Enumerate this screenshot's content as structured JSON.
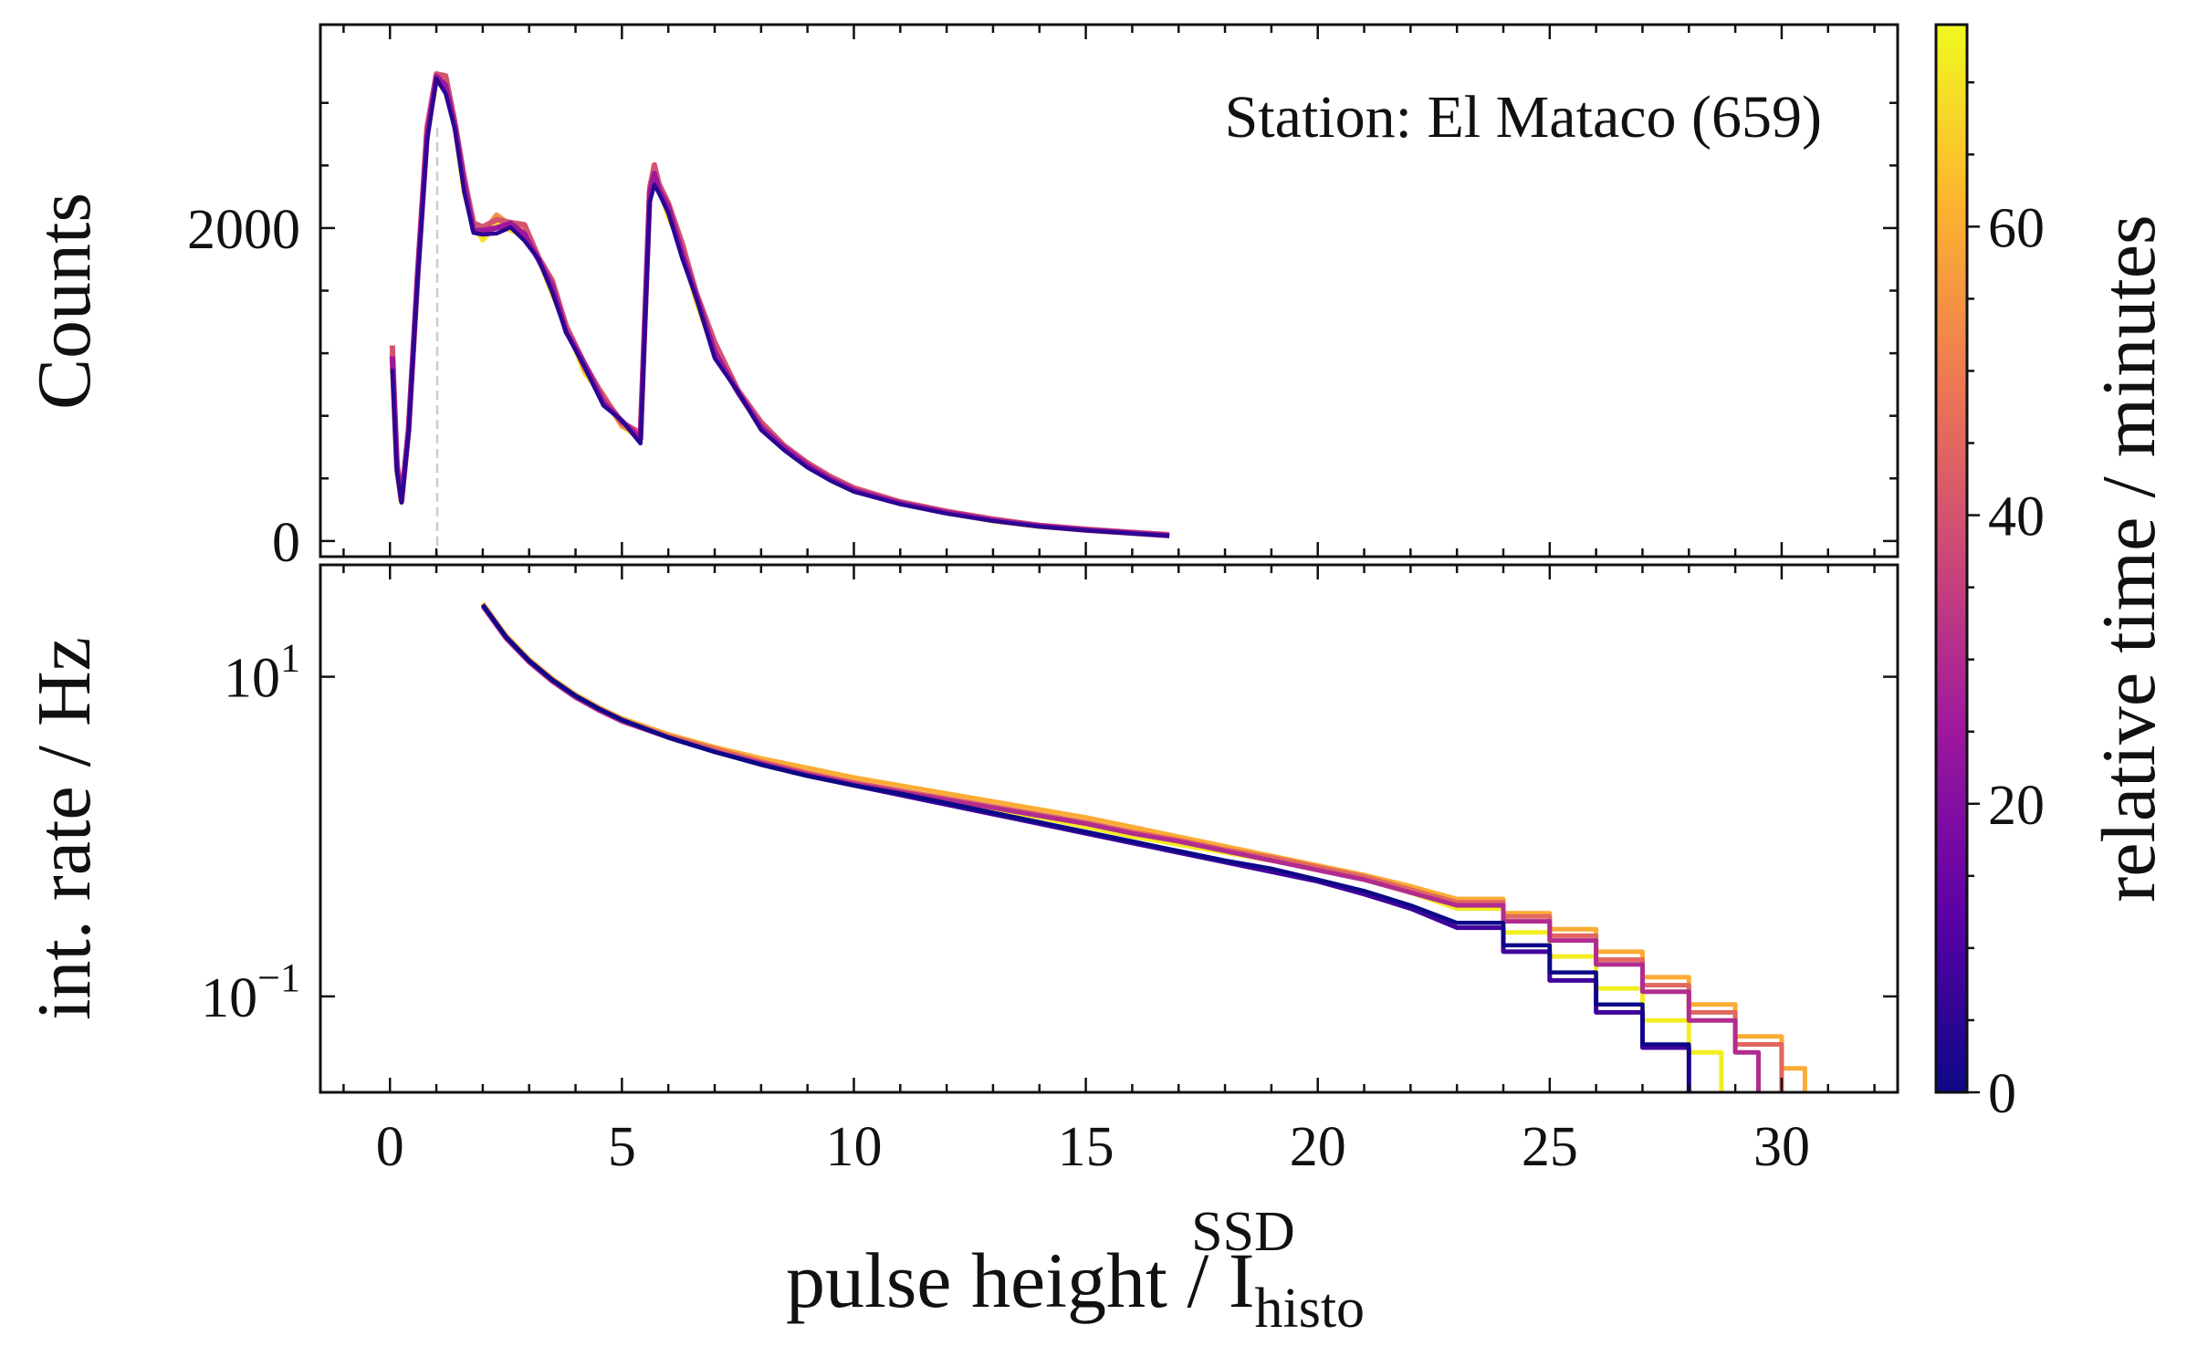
{
  "chart_data": [
    {
      "panel": "top",
      "type": "line",
      "ylabel": "Counts",
      "annotation": "Station: El Mataco (659)",
      "yticks": [
        0,
        2000
      ],
      "ylim": [
        -100,
        3300
      ],
      "xlim": [
        -1.5,
        32.5
      ],
      "x": [
        0.05,
        0.15,
        0.25,
        0.4,
        0.6,
        0.8,
        1.0,
        1.2,
        1.4,
        1.6,
        1.8,
        2.0,
        2.3,
        2.6,
        2.9,
        3.2,
        3.5,
        3.8,
        4.2,
        4.6,
        5.0,
        5.4,
        5.6,
        5.7,
        5.8,
        6.0,
        6.3,
        6.6,
        7.0,
        7.5,
        8.0,
        8.5,
        9.0,
        9.5,
        10.0,
        11.0,
        12.0,
        13.0,
        14.0,
        15.0,
        16.0,
        16.8
      ],
      "series": [
        {
          "minutes": 70,
          "values": [
            1150,
            450,
            250,
            700,
            1700,
            2600,
            2950,
            2900,
            2650,
            2250,
            2000,
            1950,
            2000,
            2000,
            1950,
            1800,
            1600,
            1350,
            1100,
            900,
            750,
            650,
            2200,
            2300,
            2250,
            2100,
            1850,
            1550,
            1200,
            950,
            720,
            590,
            480,
            390,
            320,
            240,
            180,
            130,
            95,
            70,
            50,
            35
          ]
        },
        {
          "minutes": 55,
          "values": [
            1200,
            480,
            260,
            710,
            1720,
            2620,
            2980,
            2930,
            2680,
            2280,
            2030,
            1980,
            2060,
            2040,
            1980,
            1820,
            1620,
            1370,
            1110,
            910,
            760,
            660,
            2250,
            2350,
            2280,
            2120,
            1870,
            1580,
            1230,
            970,
            740,
            600,
            490,
            400,
            330,
            245,
            185,
            135,
            97,
            72,
            52,
            36
          ]
        },
        {
          "minutes": 40,
          "values": [
            1250,
            500,
            270,
            720,
            1730,
            2640,
            3000,
            2950,
            2700,
            2300,
            2050,
            2000,
            2050,
            2050,
            2000,
            1840,
            1640,
            1390,
            1120,
            920,
            770,
            670,
            2280,
            2380,
            2300,
            2150,
            1900,
            1600,
            1250,
            990,
            760,
            610,
            500,
            410,
            340,
            250,
            190,
            140,
            100,
            75,
            55,
            40
          ]
        },
        {
          "minutes": 25,
          "values": [
            1180,
            470,
            255,
            705,
            1710,
            2610,
            2960,
            2910,
            2660,
            2260,
            2010,
            1960,
            2020,
            2020,
            1960,
            1810,
            1610,
            1360,
            1105,
            905,
            755,
            655,
            2230,
            2330,
            2270,
            2110,
            1860,
            1560,
            1210,
            960,
            730,
            595,
            485,
            395,
            325,
            242,
            182,
            132,
            96,
            71,
            51,
            35
          ]
        },
        {
          "minutes": 5,
          "values": [
            1100,
            440,
            245,
            690,
            1690,
            2580,
            2930,
            2880,
            2620,
            2230,
            1980,
            1940,
            1990,
            1980,
            1940,
            1790,
            1590,
            1340,
            1090,
            890,
            745,
            645,
            2150,
            2280,
            2230,
            2080,
            1830,
            1530,
            1190,
            940,
            710,
            580,
            470,
            385,
            315,
            235,
            175,
            128,
            92,
            68,
            48,
            33
          ]
        }
      ]
    },
    {
      "panel": "bottom",
      "type": "line",
      "scale": "log",
      "ylabel": "int. rate / Hz",
      "xlabel_main": "pulse height / I",
      "xlabel_sup": "SSD",
      "xlabel_sub": "histo",
      "yticks": [
        {
          "base": "10",
          "exp": "1"
        },
        {
          "base": "10",
          "exp": "−1"
        }
      ],
      "xticks": [
        "0",
        "5",
        "10",
        "15",
        "20",
        "25",
        "30"
      ],
      "xlim": [
        -1.5,
        32.5
      ],
      "ylim_log10": [
        -1.6,
        1.7
      ],
      "x": [
        2.0,
        2.5,
        3.0,
        3.5,
        4.0,
        4.5,
        5.0,
        6.0,
        7.0,
        8.0,
        9.0,
        10.0,
        11.0,
        12.0,
        13.0,
        14.0,
        15.0,
        16.0,
        17.0,
        18.0,
        19.0,
        20.0,
        21.0,
        22.0,
        23.0,
        24.0,
        25.0,
        26.0,
        27.0,
        28.0,
        29.0,
        30.0
      ],
      "series": [
        {
          "minutes": 72,
          "end_x": 28.7,
          "values_log10": [
            1.45,
            1.25,
            1.1,
            0.98,
            0.88,
            0.8,
            0.73,
            0.62,
            0.53,
            0.45,
            0.38,
            0.32,
            0.27,
            0.22,
            0.17,
            0.12,
            0.06,
            0.0,
            -0.05,
            -0.1,
            -0.15,
            -0.2,
            -0.27,
            -0.35,
            -0.45,
            -0.6,
            -0.75,
            -0.95,
            -1.15,
            -1.35,
            -1.5,
            -1.6
          ]
        },
        {
          "minutes": 60,
          "end_x": 30.5,
          "values_log10": [
            1.46,
            1.26,
            1.11,
            0.99,
            0.89,
            0.81,
            0.74,
            0.64,
            0.56,
            0.49,
            0.43,
            0.37,
            0.32,
            0.27,
            0.22,
            0.17,
            0.12,
            0.06,
            0.0,
            -0.06,
            -0.12,
            -0.18,
            -0.24,
            -0.31,
            -0.39,
            -0.48,
            -0.58,
            -0.72,
            -0.88,
            -1.05,
            -1.25,
            -1.45
          ]
        },
        {
          "minutes": 45,
          "end_x": 30.0,
          "values_log10": [
            1.45,
            1.25,
            1.1,
            0.98,
            0.88,
            0.8,
            0.73,
            0.63,
            0.55,
            0.47,
            0.4,
            0.34,
            0.29,
            0.24,
            0.19,
            0.14,
            0.09,
            0.03,
            -0.02,
            -0.08,
            -0.13,
            -0.19,
            -0.25,
            -0.33,
            -0.41,
            -0.5,
            -0.62,
            -0.77,
            -0.93,
            -1.1,
            -1.3,
            -1.5
          ]
        },
        {
          "minutes": 30,
          "end_x": 29.5,
          "values_log10": [
            1.44,
            1.24,
            1.09,
            0.97,
            0.87,
            0.79,
            0.72,
            0.62,
            0.53,
            0.46,
            0.39,
            0.33,
            0.28,
            0.23,
            0.18,
            0.13,
            0.08,
            0.02,
            -0.03,
            -0.09,
            -0.15,
            -0.21,
            -0.27,
            -0.35,
            -0.43,
            -0.53,
            -0.65,
            -0.8,
            -0.97,
            -1.15,
            -1.35,
            -1.55
          ]
        },
        {
          "minutes": 8,
          "end_x": 28.0,
          "values_log10": [
            1.45,
            1.25,
            1.1,
            0.98,
            0.88,
            0.8,
            0.73,
            0.62,
            0.53,
            0.45,
            0.38,
            0.32,
            0.26,
            0.2,
            0.14,
            0.08,
            0.02,
            -0.04,
            -0.1,
            -0.16,
            -0.22,
            -0.28,
            -0.36,
            -0.45,
            -0.57,
            -0.72,
            -0.9,
            -1.1,
            -1.32,
            -1.55,
            -1.6,
            -1.6
          ]
        },
        {
          "minutes": 0,
          "end_x": 28.0,
          "values_log10": [
            1.45,
            1.25,
            1.1,
            0.98,
            0.88,
            0.8,
            0.73,
            0.62,
            0.53,
            0.45,
            0.38,
            0.32,
            0.27,
            0.21,
            0.15,
            0.09,
            0.03,
            -0.03,
            -0.09,
            -0.15,
            -0.2,
            -0.27,
            -0.34,
            -0.43,
            -0.54,
            -0.68,
            -0.85,
            -1.05,
            -1.3,
            -1.55,
            -1.6,
            -1.6
          ]
        }
      ]
    }
  ],
  "colorbar": {
    "label": "relative time / minutes",
    "range": [
      0,
      74
    ],
    "ticks": [
      "0",
      "20",
      "40",
      "60"
    ],
    "colormap": [
      "#0d0887",
      "#5c01a6",
      "#9c179e",
      "#cc4778",
      "#ed7953",
      "#fdb42f",
      "#f0f921"
    ]
  }
}
